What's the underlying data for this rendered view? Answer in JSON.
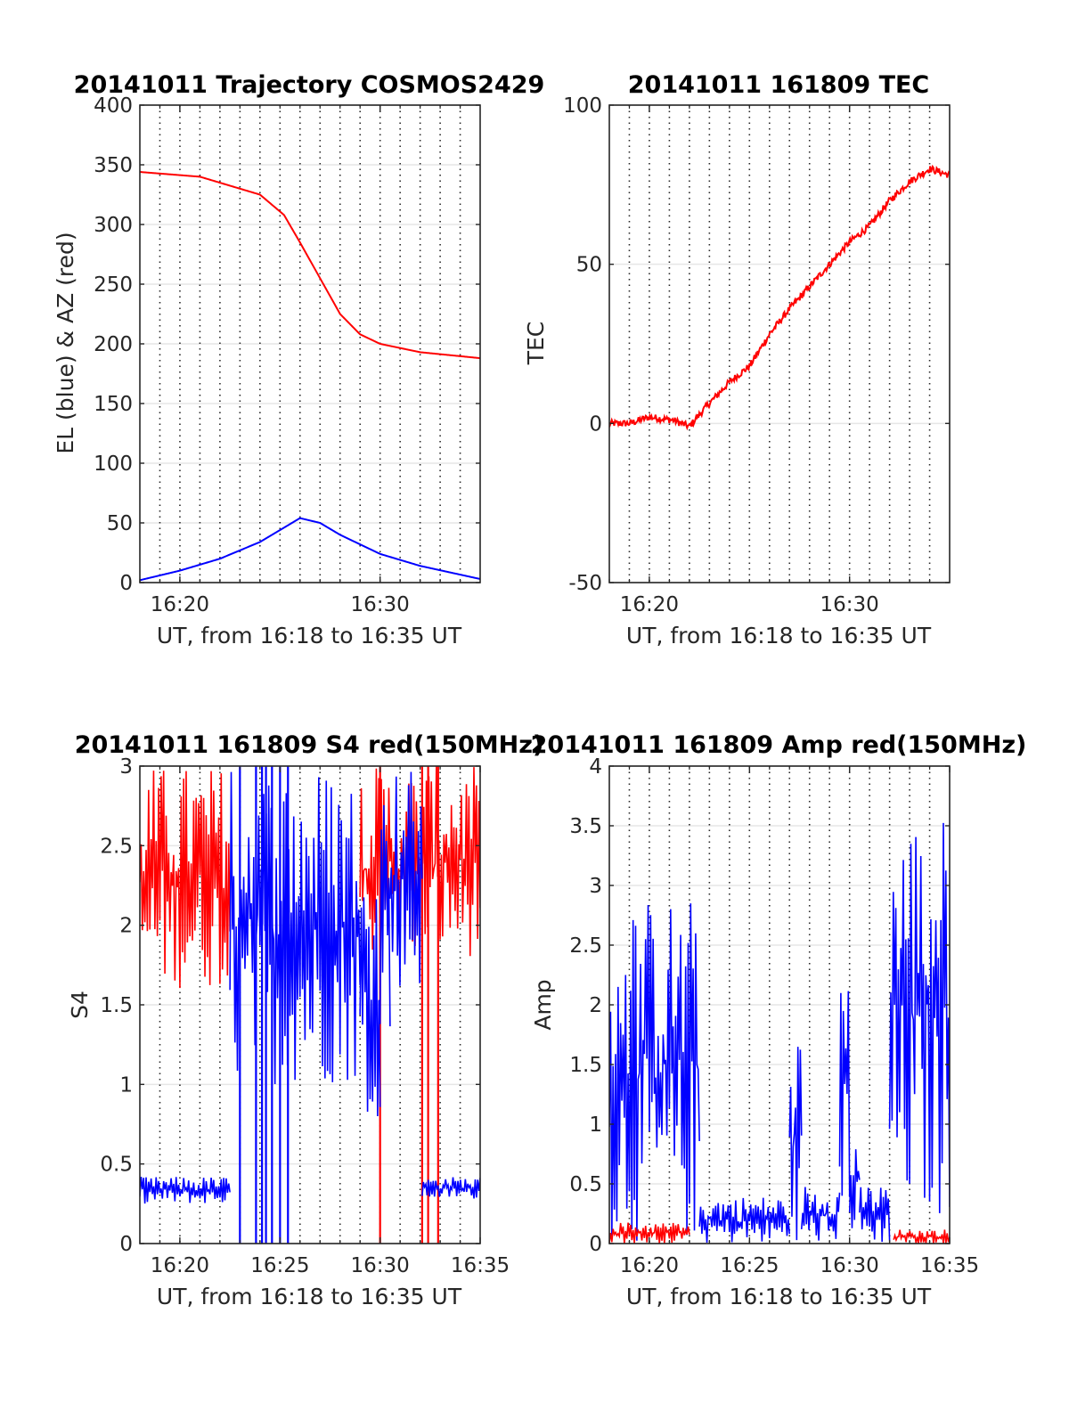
{
  "chart_data": [
    {
      "type": "line",
      "title": "20141011 Trajectory COSMOS2429",
      "xlabel": "UT, from 16:18 to 16:35 UT",
      "ylabel": "EL (blue) & AZ (red)",
      "xlim": [
        16.3,
        16.5833
      ],
      "ylim": [
        0,
        400
      ],
      "yticks": [
        0,
        50,
        100,
        150,
        200,
        250,
        300,
        350,
        400
      ],
      "xticks": [
        {
          "x": 16.3333,
          "label": "16:20"
        },
        {
          "x": 16.5,
          "label": "16:30"
        }
      ],
      "minor_grid": true,
      "series": [
        {
          "color": "#ff0000",
          "x": [
            16.3,
            16.35,
            16.4,
            16.42,
            16.4333,
            16.45,
            16.4667,
            16.4833,
            16.5,
            16.5333,
            16.5833
          ],
          "y": [
            344,
            340,
            325,
            308,
            285,
            255,
            225,
            208,
            200,
            193,
            188
          ]
        },
        {
          "color": "#0000ff",
          "x": [
            16.3,
            16.3333,
            16.3667,
            16.4,
            16.42,
            16.4333,
            16.45,
            16.4667,
            16.5,
            16.5333,
            16.5833
          ],
          "y": [
            2,
            10,
            20,
            34,
            46,
            54,
            50,
            40,
            24,
            14,
            3
          ]
        }
      ]
    },
    {
      "type": "line",
      "title": "20141011 161809 TEC",
      "xlabel": "UT, from 16:18 to 16:35 UT",
      "ylabel": "TEC",
      "xlim": [
        16.3,
        16.5833
      ],
      "ylim": [
        -50,
        100
      ],
      "yticks": [
        -50,
        0,
        50,
        100
      ],
      "xticks": [
        {
          "x": 16.3333,
          "label": "16:20"
        },
        {
          "x": 16.5,
          "label": "16:30"
        }
      ],
      "minor_grid": true,
      "series": [
        {
          "color": "#ff0000",
          "x": [
            16.3,
            16.3167,
            16.3333,
            16.3533,
            16.3667,
            16.38,
            16.4,
            16.4167,
            16.4333,
            16.45,
            16.4667,
            16.4833,
            16.5,
            16.5167,
            16.5333,
            16.55,
            16.5667,
            16.5833
          ],
          "y": [
            0,
            0,
            2,
            1,
            -1,
            5,
            13,
            18,
            28,
            36,
            43,
            50,
            57,
            62,
            70,
            76,
            80,
            78
          ]
        }
      ]
    },
    {
      "type": "line",
      "title": "20141011 161809 S4 red(150MHz)",
      "xlabel": "UT, from 16:18 to 16:35 UT",
      "ylabel": "S4",
      "xlim": [
        16.3,
        16.5833
      ],
      "ylim": [
        0,
        3
      ],
      "yticks": [
        0,
        0.5,
        1,
        1.5,
        2,
        2.5,
        3
      ],
      "xticks": [
        {
          "x": 16.3333,
          "label": "16:20"
        },
        {
          "x": 16.4167,
          "label": "16:25"
        },
        {
          "x": 16.5,
          "label": "16:30"
        },
        {
          "x": 16.5833,
          "label": "16:35"
        }
      ],
      "minor_grid": true,
      "series": [
        {
          "color": "#ff0000",
          "segments": [
            [
              16.3,
              16.375,
              1.6,
              3.0
            ],
            [
              16.4833,
              16.5833,
              1.8,
              3.0
            ]
          ],
          "dropouts": [
            16.5,
            16.535,
            16.54,
            16.5483
          ]
        },
        {
          "color": "#0000ff",
          "segments": [
            [
              16.3,
              16.375,
              0.25,
              0.42
            ],
            [
              16.375,
              16.4833,
              1.0,
              3.0
            ],
            [
              16.4833,
              16.5,
              0.8,
              2.4
            ],
            [
              16.5,
              16.5083,
              1.3,
              3.0
            ],
            [
              16.5083,
              16.535,
              1.6,
              3.0
            ],
            [
              16.535,
              16.5833,
              0.28,
              0.42
            ]
          ],
          "dropouts": [
            16.3833,
            16.3967,
            16.4017,
            16.405,
            16.41,
            16.4167,
            16.4233
          ]
        }
      ]
    },
    {
      "type": "line",
      "title": "20141011 161809 Amp red(150MHz)",
      "xlabel": "UT, from 16:18 to 16:35 UT",
      "ylabel": "Amp",
      "xlim": [
        16.3,
        16.5833
      ],
      "ylim": [
        0,
        4
      ],
      "yticks": [
        0,
        0.5,
        1,
        1.5,
        2,
        2.5,
        3,
        3.5,
        4
      ],
      "xticks": [
        {
          "x": 16.3333,
          "label": "16:20"
        },
        {
          "x": 16.4167,
          "label": "16:25"
        },
        {
          "x": 16.5,
          "label": "16:30"
        },
        {
          "x": 16.5833,
          "label": "16:35"
        }
      ],
      "minor_grid": true,
      "series": [
        {
          "color": "#0000ff",
          "segments": [
            [
              16.3,
              16.375,
              0.0,
              2.9
            ],
            [
              16.375,
              16.45,
              0.0,
              0.4
            ],
            [
              16.45,
              16.46,
              0.0,
              1.8
            ],
            [
              16.46,
              16.4917,
              0.0,
              0.5
            ],
            [
              16.4917,
              16.5,
              0.3,
              2.5
            ],
            [
              16.5,
              16.5083,
              0.0,
              1.0
            ],
            [
              16.5083,
              16.5333,
              0.0,
              0.5
            ],
            [
              16.5333,
              16.5833,
              0.2,
              3.6
            ]
          ]
        },
        {
          "color": "#ff0000",
          "segments": [
            [
              16.3,
              16.3667,
              0.0,
              0.18
            ],
            [
              16.5367,
              16.5833,
              0.0,
              0.12
            ]
          ]
        }
      ]
    }
  ]
}
